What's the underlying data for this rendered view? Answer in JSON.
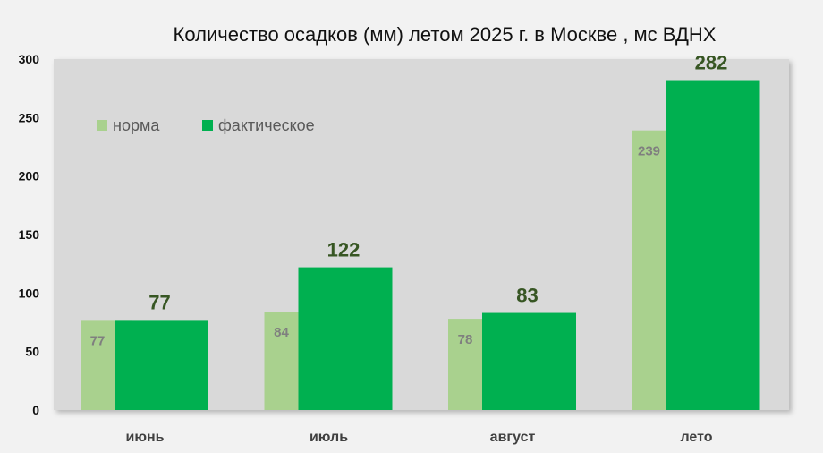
{
  "chart_data": {
    "type": "bar",
    "title": "Количество осадков (мм) летом 2025 г. в Москве , мс ВДНХ",
    "categories": [
      "июнь",
      "июль",
      "август",
      "лето"
    ],
    "series": [
      {
        "name": "норма",
        "values": [
          77,
          84,
          78,
          239
        ],
        "color": "#a9d18e"
      },
      {
        "name": "фактическое",
        "values": [
          77,
          122,
          83,
          282
        ],
        "color": "#00b050"
      }
    ],
    "yticks": [
      "0",
      "50",
      "100",
      "150",
      "200",
      "250",
      "300"
    ],
    "ylim": [
      0,
      300
    ],
    "legend_position": "top-left",
    "plot_background": "#d9d9d9",
    "grid": false
  }
}
